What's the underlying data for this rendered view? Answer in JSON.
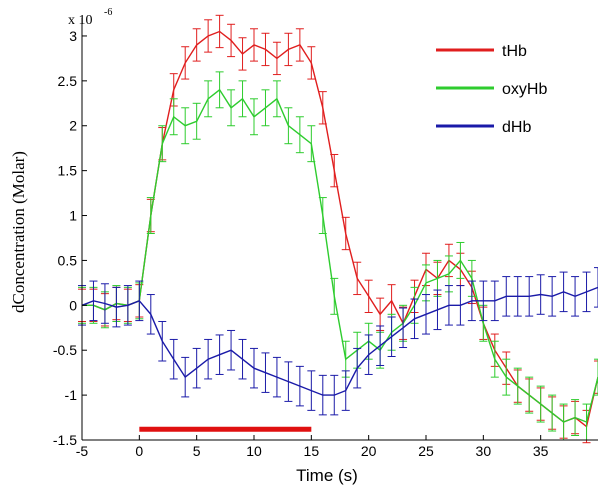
{
  "chart_data": {
    "type": "line",
    "title": "",
    "xlabel": "Time (s)",
    "ylabel": "dConcentration (Molar)",
    "y_multiplier_label": "x 10",
    "y_multiplier_exp": "-6",
    "xlim": [
      -5,
      40
    ],
    "ylim": [
      -1.5,
      3.2
    ],
    "x_ticks": [
      -5,
      0,
      5,
      10,
      15,
      20,
      25,
      30,
      35
    ],
    "x_tick_labels": [
      "-5",
      "0",
      "5",
      "10",
      "15",
      "20",
      "25",
      "30",
      "35"
    ],
    "y_ticks": [
      -1.5,
      -1,
      -0.5,
      0,
      0.5,
      1,
      1.5,
      2,
      2.5,
      3
    ],
    "y_tick_labels": [
      "-1.5",
      "-1",
      "-0.5",
      "0",
      "0.5",
      "1",
      "1.5",
      "2",
      "2.5",
      "3"
    ],
    "grid": false,
    "legend_position": "top-right",
    "stimulus": {
      "start": 0,
      "end": 15,
      "y": -1.38,
      "color": "#e01010"
    },
    "series": [
      {
        "name": "tHb",
        "color": "#e01e1e",
        "err": 0.18,
        "x": [
          -5,
          -4,
          -3,
          -2,
          -1,
          0,
          1,
          2,
          3,
          4,
          5,
          6,
          7,
          8,
          9,
          10,
          11,
          12,
          13,
          14,
          15,
          16,
          17,
          18,
          19,
          20,
          21,
          22,
          23,
          24,
          25,
          26,
          27,
          28,
          29,
          30,
          31,
          32,
          33,
          34,
          35,
          36,
          37,
          38,
          39,
          40
        ],
        "values": [
          0.0,
          0.0,
          -0.05,
          0.02,
          0.0,
          0.05,
          1.0,
          1.8,
          2.4,
          2.7,
          2.9,
          3.0,
          3.05,
          2.95,
          2.8,
          2.9,
          2.85,
          2.75,
          2.85,
          2.9,
          2.7,
          2.2,
          1.5,
          0.8,
          0.3,
          0.1,
          -0.1,
          0.05,
          -0.2,
          0.1,
          0.4,
          0.3,
          0.5,
          0.4,
          0.2,
          -0.2,
          -0.5,
          -0.7,
          -0.9,
          -1.0,
          -1.1,
          -1.2,
          -1.3,
          -1.25,
          -1.35,
          -0.8
        ]
      },
      {
        "name": "oxyHb",
        "color": "#2ecc2e",
        "err": 0.2,
        "x": [
          -5,
          -4,
          -3,
          -2,
          -1,
          0,
          1,
          2,
          3,
          4,
          5,
          6,
          7,
          8,
          9,
          10,
          11,
          12,
          13,
          14,
          15,
          16,
          17,
          18,
          19,
          20,
          21,
          22,
          23,
          24,
          25,
          26,
          27,
          28,
          29,
          30,
          31,
          32,
          33,
          34,
          35,
          36,
          37,
          38,
          39,
          40
        ],
        "values": [
          0.0,
          0.0,
          -0.05,
          0.02,
          0.0,
          0.05,
          1.0,
          1.8,
          2.1,
          2.0,
          2.05,
          2.3,
          2.4,
          2.2,
          2.3,
          2.1,
          2.2,
          2.3,
          2.0,
          1.9,
          1.8,
          1.0,
          0.1,
          -0.6,
          -0.5,
          -0.4,
          -0.5,
          -0.3,
          -0.2,
          0.0,
          0.25,
          0.3,
          0.35,
          0.5,
          0.3,
          -0.2,
          -0.6,
          -0.8,
          -0.9,
          -1.0,
          -1.1,
          -1.2,
          -1.3,
          -1.25,
          -1.3,
          -0.8
        ]
      },
      {
        "name": "dHb",
        "color": "#1a1aa8",
        "err": 0.22,
        "x": [
          -5,
          -4,
          -3,
          -2,
          -1,
          0,
          1,
          2,
          3,
          4,
          5,
          6,
          7,
          8,
          9,
          10,
          11,
          12,
          13,
          14,
          15,
          16,
          17,
          18,
          19,
          20,
          21,
          22,
          23,
          24,
          25,
          26,
          27,
          28,
          29,
          30,
          31,
          32,
          33,
          34,
          35,
          36,
          37,
          38,
          39,
          40
        ],
        "values": [
          0.0,
          0.05,
          0.02,
          -0.02,
          0.0,
          0.05,
          -0.1,
          -0.4,
          -0.6,
          -0.8,
          -0.7,
          -0.6,
          -0.55,
          -0.5,
          -0.6,
          -0.7,
          -0.75,
          -0.8,
          -0.85,
          -0.9,
          -0.95,
          -1.0,
          -1.0,
          -0.95,
          -0.7,
          -0.55,
          -0.45,
          -0.35,
          -0.25,
          -0.15,
          -0.1,
          -0.05,
          0.0,
          0.0,
          0.05,
          0.05,
          0.05,
          0.1,
          0.1,
          0.1,
          0.12,
          0.1,
          0.15,
          0.1,
          0.15,
          0.2
        ]
      }
    ]
  }
}
